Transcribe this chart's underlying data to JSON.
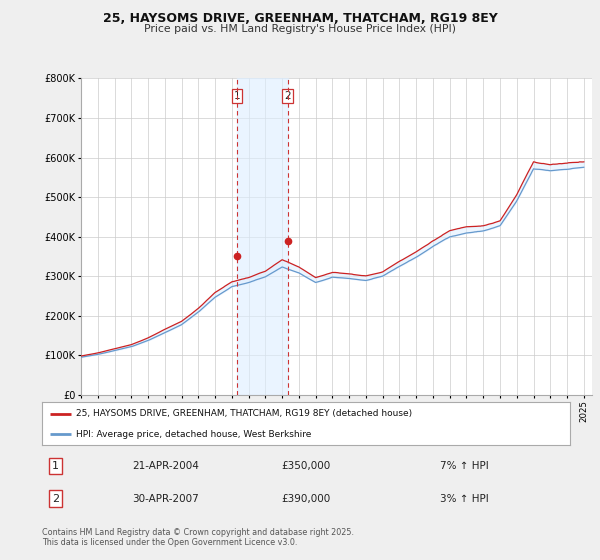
{
  "title": "25, HAYSOMS DRIVE, GREENHAM, THATCHAM, RG19 8EY",
  "subtitle": "Price paid vs. HM Land Registry's House Price Index (HPI)",
  "bg_color": "#efefef",
  "plot_bg_color": "#ffffff",
  "legend1": "25, HAYSOMS DRIVE, GREENHAM, THATCHAM, RG19 8EY (detached house)",
  "legend2": "HPI: Average price, detached house, West Berkshire",
  "footer": "Contains HM Land Registry data © Crown copyright and database right 2025.\nThis data is licensed under the Open Government Licence v3.0.",
  "sale1_label": "1",
  "sale2_label": "2",
  "sale1_date": "21-APR-2004",
  "sale1_price": "£350,000",
  "sale1_hpi": "7% ↑ HPI",
  "sale2_date": "30-APR-2007",
  "sale2_price": "£390,000",
  "sale2_hpi": "3% ↑ HPI",
  "sale1_x": 2004.3,
  "sale2_x": 2007.33,
  "sale1_y": 350000,
  "sale2_y": 390000,
  "hpi_color": "#6699cc",
  "price_color": "#cc2222",
  "shade_color": "#ddeeff",
  "vline_color": "#cc3333",
  "ylim_min": 0,
  "ylim_max": 800000,
  "yticks": [
    0,
    100000,
    200000,
    300000,
    400000,
    500000,
    600000,
    700000,
    800000
  ],
  "ytick_labels": [
    "£0",
    "£100K",
    "£200K",
    "£300K",
    "£400K",
    "£500K",
    "£600K",
    "£700K",
    "£800K"
  ],
  "xmin": 1995.0,
  "xmax": 2025.5
}
